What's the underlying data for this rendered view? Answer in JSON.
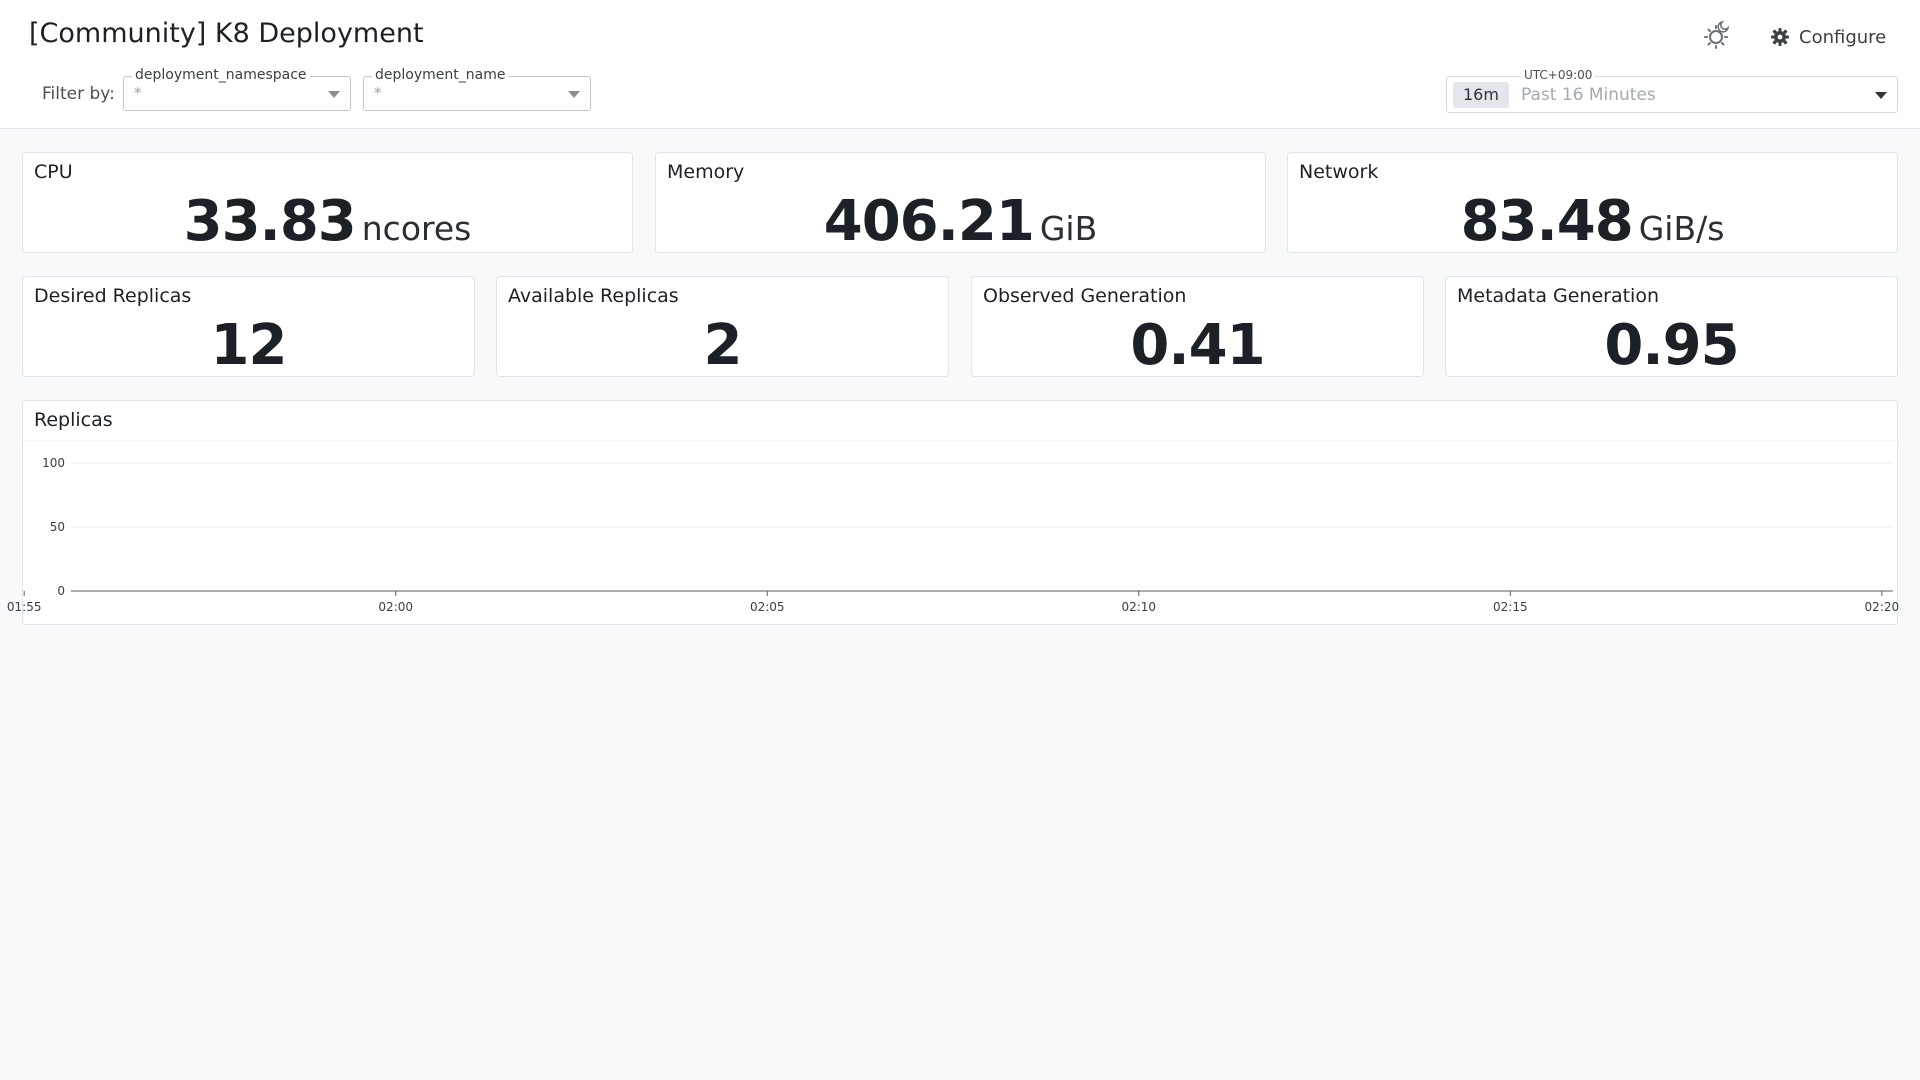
{
  "header": {
    "title": "[Community] K8 Deployment",
    "filter_label": "Filter by:",
    "filters": [
      {
        "name": "deployment_namespace",
        "value": "*"
      },
      {
        "name": "deployment_name",
        "value": "*"
      }
    ],
    "configure_label": "Configure",
    "timepicker": {
      "timezone": "UTC+09:00",
      "badge": "16m",
      "range": "Past 16 Minutes"
    }
  },
  "top_stats": [
    {
      "title": "CPU",
      "value": "33.83",
      "unit": "ncores"
    },
    {
      "title": "Memory",
      "value": "406.21",
      "unit": "GiB"
    },
    {
      "title": "Network",
      "value": "83.48",
      "unit": "GiB/s"
    }
  ],
  "replica_stats": [
    {
      "title": "Desired Replicas",
      "value": "12"
    },
    {
      "title": "Available Replicas",
      "value": "2"
    },
    {
      "title": "Observed Generation",
      "value": "0.41"
    },
    {
      "title": "Metadata Generation",
      "value": "0.95"
    }
  ],
  "colors": {
    "blue": "#8ec5f7",
    "blue_line": "#4a90d9",
    "purple": "#7b5bd6",
    "lavender": "#d4c2f5",
    "yellow": "#f5c518"
  },
  "chart_data": {
    "type": "area",
    "title": "Replicas",
    "stacked": true,
    "ylim": [
      0,
      100
    ],
    "y_ticks": [
      "0",
      "50",
      "100"
    ],
    "x_ticks": [
      "01:55",
      "02:00",
      "02:05",
      "02:10",
      "02:15",
      "02:20"
    ],
    "x_range_minutes": [
      -4.37,
      20.15
    ],
    "grid": true,
    "legend": "none",
    "x": [
      -4.37,
      -4.0,
      -3.6,
      -3.2,
      -2.8,
      -2.4,
      -2.0,
      -1.6,
      -1.2,
      -0.8,
      -0.4,
      0.0,
      0.4,
      0.8,
      1.2,
      1.6,
      2.0,
      2.4,
      2.8,
      3.2,
      3.6,
      4.0,
      4.4,
      4.8,
      5.2,
      5.6,
      6.0,
      6.4,
      6.8,
      7.2,
      7.6,
      8.0,
      8.4,
      8.8,
      9.2,
      9.6,
      10.0,
      10.4,
      10.8,
      11.2,
      11.6,
      12.0,
      12.4,
      12.8,
      13.2,
      13.6,
      14.0,
      14.4,
      14.8,
      15.2,
      15.6,
      16.0,
      16.4,
      16.8,
      17.2,
      17.6,
      18.0,
      18.4,
      18.8,
      19.2,
      19.6,
      20.0,
      20.15
    ],
    "series": [
      {
        "name": "",
        "values": [
          0,
          0,
          0,
          0,
          0,
          0,
          0,
          0,
          0,
          0,
          0,
          0,
          0,
          0,
          0,
          0,
          0,
          0,
          0,
          0,
          0,
          0,
          0,
          0,
          0,
          0,
          0,
          0,
          0,
          0,
          0,
          0,
          0,
          0,
          0,
          0,
          0,
          0,
          0,
          0,
          0,
          0,
          0,
          0,
          0,
          0,
          0,
          0,
          0,
          0,
          0,
          0,
          0,
          0,
          0,
          0,
          0,
          0,
          0,
          0,
          0,
          0,
          0
        ]
      },
      {
        "name": "",
        "values": [
          0,
          0,
          0,
          0,
          0,
          0,
          0,
          0,
          0,
          0,
          0,
          0,
          0,
          0,
          0,
          0,
          0,
          0,
          0,
          0,
          0,
          0,
          0,
          0,
          0,
          0,
          0,
          0,
          0,
          0,
          0,
          0,
          0,
          0,
          0,
          0,
          0,
          0,
          0,
          0,
          0,
          0,
          0,
          0,
          0,
          0,
          0,
          0,
          0,
          0,
          0,
          0,
          0,
          0,
          0,
          0,
          0,
          0,
          0,
          0,
          0,
          0,
          0
        ]
      },
      {
        "name": "",
        "values": [
          0,
          0,
          0,
          0,
          0,
          0,
          0,
          0,
          0,
          0,
          0,
          0,
          0,
          0,
          0,
          0,
          0,
          0,
          0,
          0,
          0,
          0,
          0,
          0,
          0,
          0,
          0,
          0,
          0,
          0,
          0,
          0,
          0,
          0,
          0,
          0,
          0,
          0,
          0,
          0,
          0,
          0,
          0,
          0,
          0,
          0,
          0,
          0,
          0,
          0,
          0,
          0,
          0,
          0,
          0,
          0,
          0,
          0,
          0,
          0,
          0,
          0,
          0
        ]
      },
      {
        "name": "",
        "values": [
          0,
          0,
          0,
          0,
          0,
          0,
          0,
          0,
          0,
          0,
          0,
          0,
          0,
          0,
          0,
          0,
          0,
          0,
          0,
          0,
          0,
          0,
          0,
          0,
          0,
          0,
          0,
          0,
          0,
          0,
          0,
          0,
          0,
          0,
          0,
          0,
          0,
          0,
          0,
          0,
          0,
          0,
          0,
          0,
          0,
          0,
          0,
          0,
          0,
          0,
          0,
          0,
          0,
          0,
          0,
          0,
          0,
          0,
          0,
          0,
          0,
          0,
          0
        ]
      }
    ]
  }
}
